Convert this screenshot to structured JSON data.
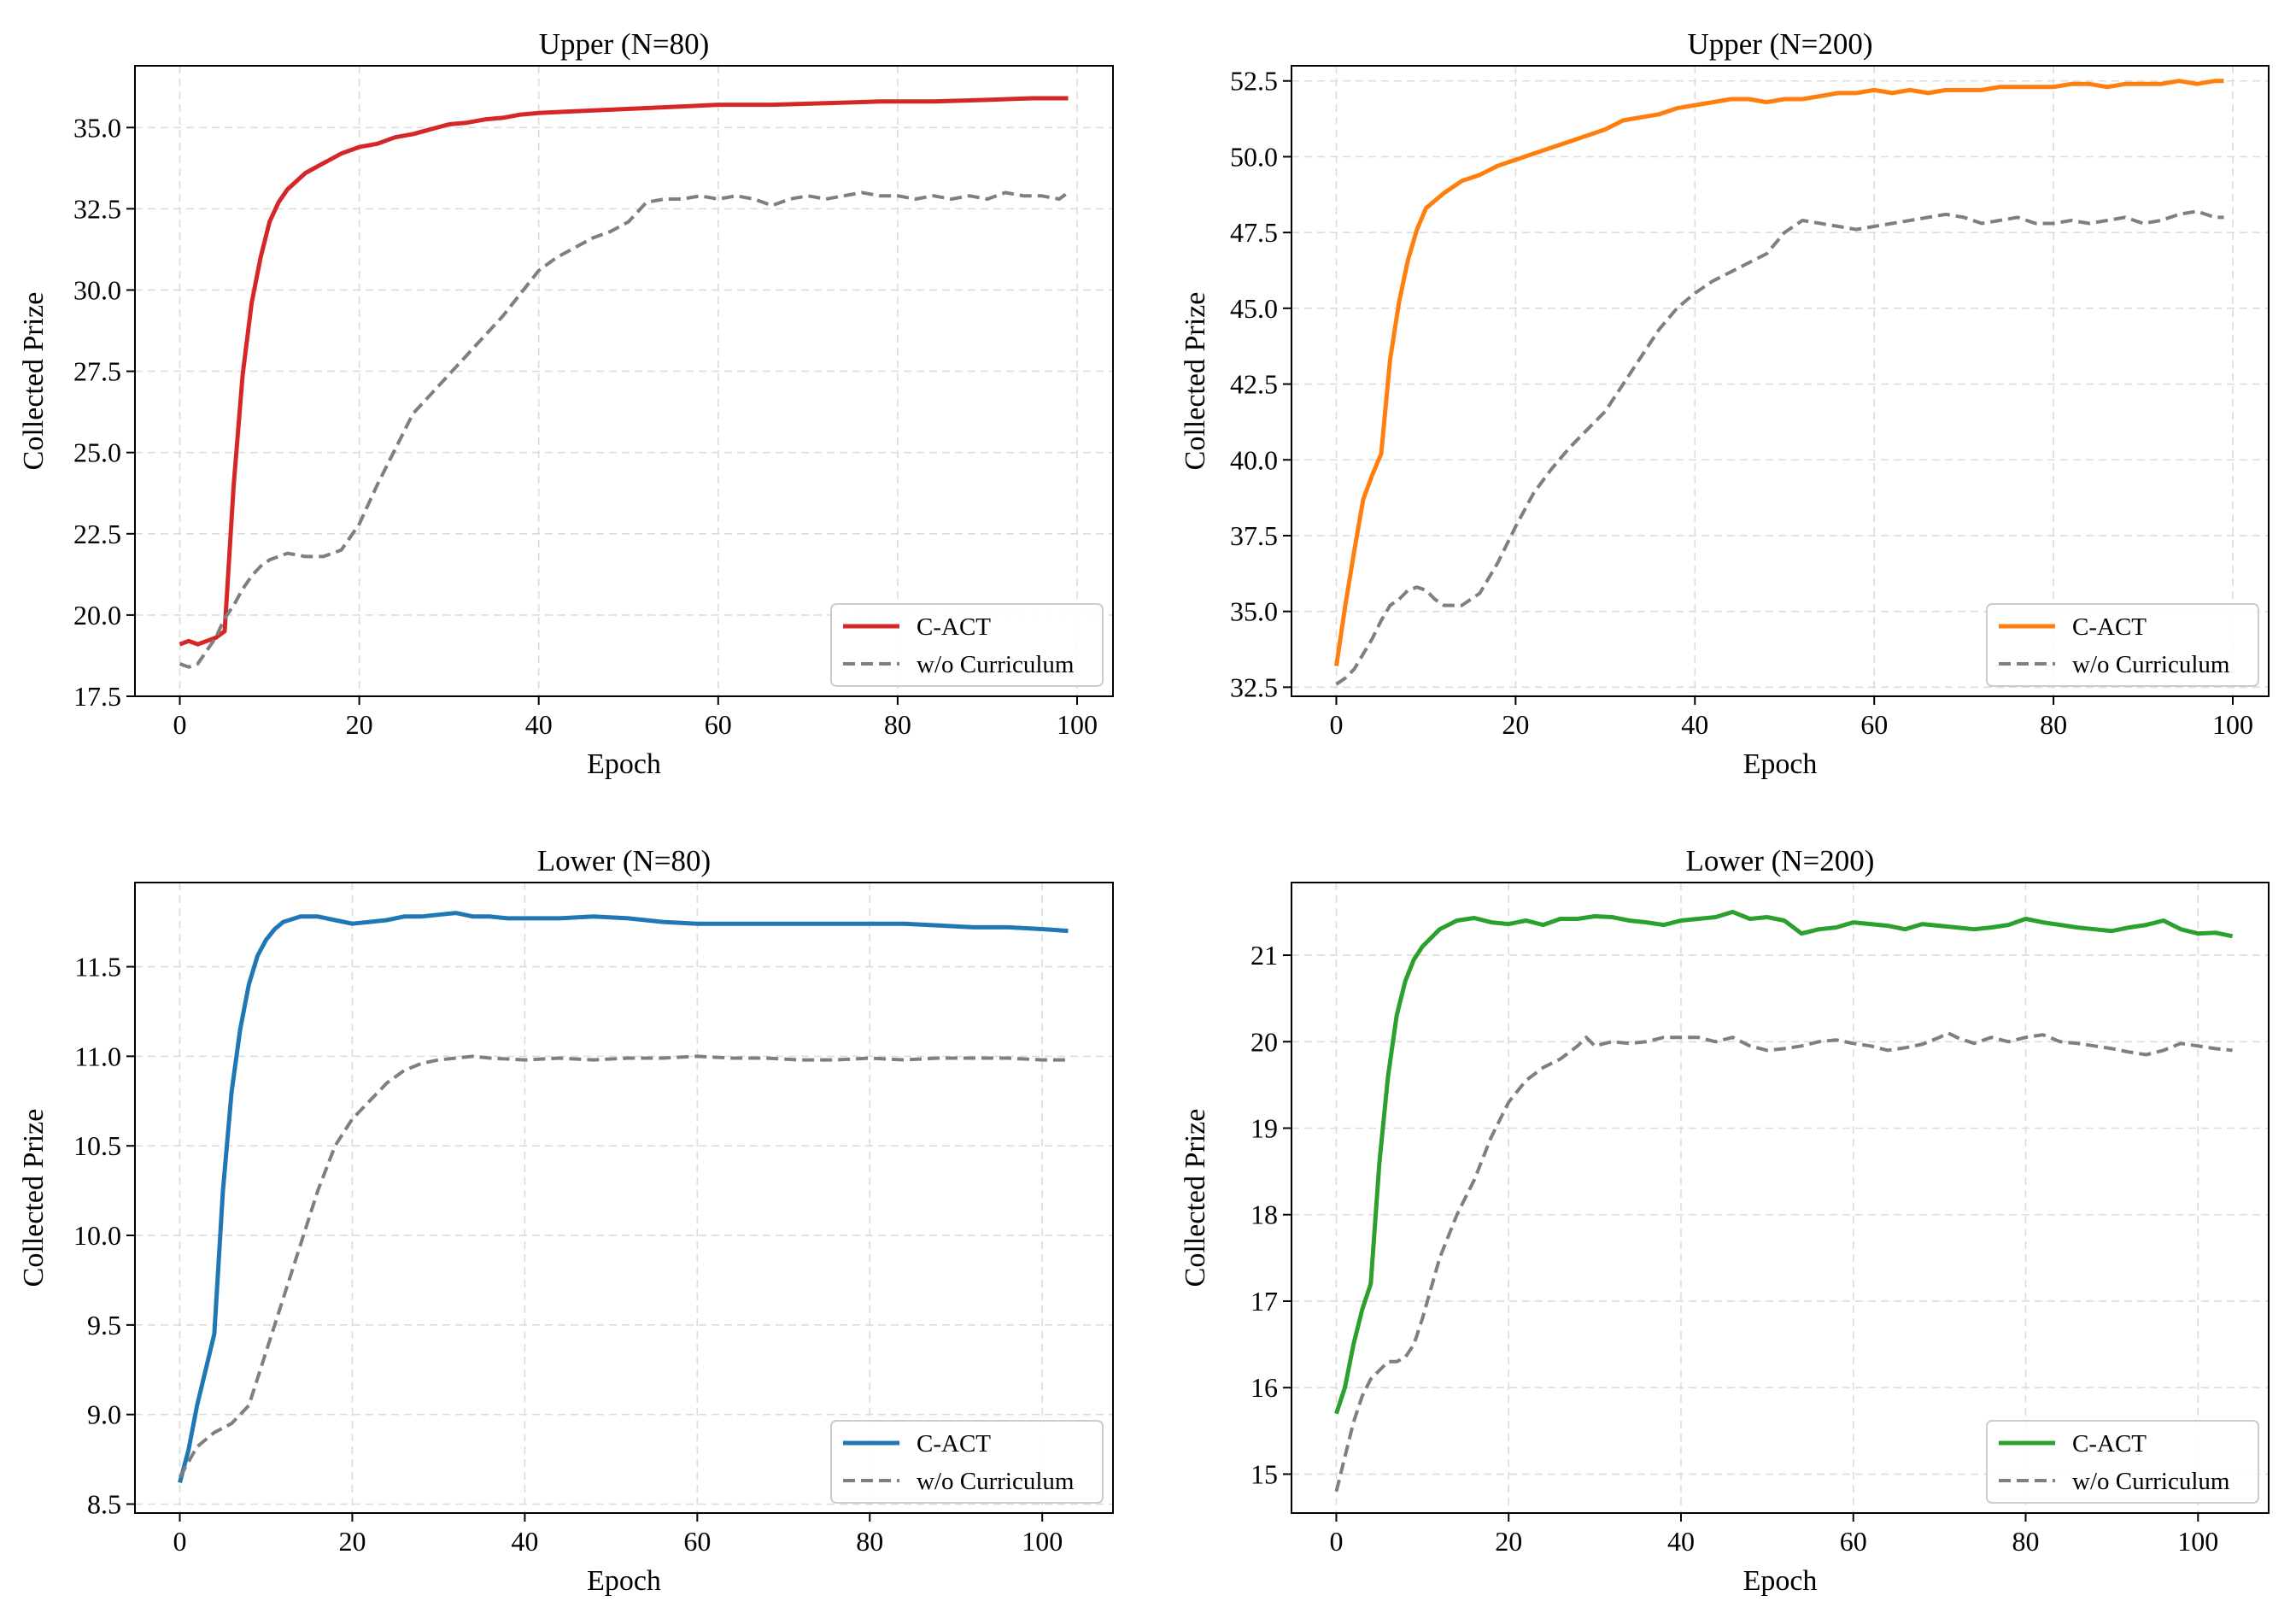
{
  "chart_data": [
    {
      "type": "line",
      "title": "Upper (N=80)",
      "xlabel": "Epoch",
      "ylabel": "Collected Prize",
      "xlim": [
        -5,
        104
      ],
      "ylim": [
        17.5,
        36.9
      ],
      "xticks": [
        0,
        20,
        40,
        60,
        80,
        100
      ],
      "yticks": [
        17.5,
        20.0,
        22.5,
        25.0,
        27.5,
        30.0,
        32.5,
        35.0
      ],
      "ytick_decimals": 1,
      "grid": true,
      "legend_position": "lower right",
      "series": [
        {
          "name": "C-ACT",
          "color": "#d62728",
          "dash": "solid",
          "x": [
            0,
            1,
            2,
            3,
            4,
            5,
            6,
            7,
            8,
            9,
            10,
            11,
            12,
            14,
            16,
            18,
            20,
            22,
            24,
            26,
            28,
            30,
            32,
            34,
            36,
            38,
            40,
            44,
            48,
            52,
            56,
            60,
            66,
            72,
            78,
            84,
            90,
            95,
            99
          ],
          "y": [
            19.1,
            19.2,
            19.1,
            19.2,
            19.3,
            19.5,
            24.0,
            27.4,
            29.6,
            31.0,
            32.1,
            32.7,
            33.1,
            33.6,
            33.9,
            34.2,
            34.4,
            34.5,
            34.7,
            34.8,
            34.95,
            35.1,
            35.15,
            35.25,
            35.3,
            35.4,
            35.45,
            35.5,
            35.55,
            35.6,
            35.65,
            35.7,
            35.7,
            35.75,
            35.8,
            35.8,
            35.85,
            35.9,
            35.9
          ]
        },
        {
          "name": "w/o Curriculum",
          "color": "#7f7f7f",
          "dash": "dashed",
          "x": [
            0,
            1,
            2,
            3,
            4,
            5,
            6,
            7,
            8,
            9,
            10,
            12,
            14,
            16,
            18,
            20,
            22,
            24,
            26,
            28,
            30,
            32,
            34,
            36,
            38,
            40,
            42,
            44,
            46,
            48,
            50,
            52,
            54,
            56,
            58,
            60,
            62,
            64,
            66,
            68,
            70,
            72,
            74,
            76,
            78,
            80,
            82,
            84,
            86,
            88,
            90,
            92,
            94,
            96,
            98,
            99
          ],
          "y": [
            18.5,
            18.4,
            18.5,
            18.9,
            19.3,
            19.9,
            20.3,
            20.8,
            21.2,
            21.5,
            21.7,
            21.9,
            21.8,
            21.8,
            22.0,
            22.8,
            24.0,
            25.1,
            26.2,
            26.8,
            27.4,
            28.0,
            28.6,
            29.2,
            29.9,
            30.6,
            31.0,
            31.3,
            31.6,
            31.8,
            32.1,
            32.7,
            32.8,
            32.8,
            32.9,
            32.8,
            32.9,
            32.8,
            32.6,
            32.8,
            32.9,
            32.8,
            32.9,
            33.0,
            32.9,
            32.9,
            32.8,
            32.9,
            32.8,
            32.9,
            32.8,
            33.0,
            32.9,
            32.9,
            32.8,
            33.0
          ]
        }
      ]
    },
    {
      "type": "line",
      "title": "Upper (N=200)",
      "xlabel": "Epoch",
      "ylabel": "Collected Prize",
      "xlim": [
        -5,
        104
      ],
      "ylim": [
        32.2,
        53.0
      ],
      "xticks": [
        0,
        20,
        40,
        60,
        80,
        100
      ],
      "yticks": [
        32.5,
        35.0,
        37.5,
        40.0,
        42.5,
        45.0,
        47.5,
        50.0,
        52.5
      ],
      "ytick_decimals": 1,
      "grid": true,
      "legend_position": "lower right",
      "series": [
        {
          "name": "C-ACT",
          "color": "#ff7f0e",
          "dash": "solid",
          "x": [
            0,
            1,
            2,
            3,
            4,
            5,
            6,
            7,
            8,
            9,
            10,
            12,
            14,
            16,
            18,
            20,
            22,
            24,
            26,
            28,
            30,
            32,
            34,
            36,
            38,
            40,
            42,
            44,
            46,
            48,
            50,
            52,
            54,
            56,
            58,
            60,
            62,
            64,
            66,
            68,
            70,
            72,
            74,
            76,
            78,
            80,
            82,
            84,
            86,
            88,
            90,
            92,
            94,
            96,
            98,
            99
          ],
          "y": [
            33.2,
            35.2,
            37.0,
            38.7,
            39.5,
            40.2,
            43.3,
            45.2,
            46.6,
            47.6,
            48.3,
            48.8,
            49.2,
            49.4,
            49.7,
            49.9,
            50.1,
            50.3,
            50.5,
            50.7,
            50.9,
            51.2,
            51.3,
            51.4,
            51.6,
            51.7,
            51.8,
            51.9,
            51.9,
            51.8,
            51.9,
            51.9,
            52.0,
            52.1,
            52.1,
            52.2,
            52.1,
            52.2,
            52.1,
            52.2,
            52.2,
            52.2,
            52.3,
            52.3,
            52.3,
            52.3,
            52.4,
            52.4,
            52.3,
            52.4,
            52.4,
            52.4,
            52.5,
            52.4,
            52.5,
            52.5
          ]
        },
        {
          "name": "w/o Curriculum",
          "color": "#7f7f7f",
          "dash": "dashed",
          "x": [
            0,
            1,
            2,
            3,
            4,
            5,
            6,
            7,
            8,
            9,
            10,
            11,
            12,
            14,
            16,
            18,
            20,
            22,
            24,
            26,
            28,
            30,
            32,
            34,
            36,
            38,
            40,
            42,
            44,
            46,
            48,
            50,
            52,
            54,
            56,
            58,
            60,
            62,
            64,
            66,
            68,
            70,
            72,
            74,
            76,
            78,
            80,
            82,
            84,
            86,
            88,
            90,
            92,
            94,
            96,
            98,
            99
          ],
          "y": [
            32.6,
            32.8,
            33.1,
            33.6,
            34.1,
            34.7,
            35.2,
            35.4,
            35.7,
            35.8,
            35.7,
            35.4,
            35.2,
            35.2,
            35.6,
            36.6,
            37.8,
            38.9,
            39.7,
            40.4,
            41.0,
            41.6,
            42.5,
            43.4,
            44.3,
            45.0,
            45.5,
            45.9,
            46.2,
            46.5,
            46.8,
            47.5,
            47.9,
            47.8,
            47.7,
            47.6,
            47.7,
            47.8,
            47.9,
            48.0,
            48.1,
            48.0,
            47.8,
            47.9,
            48.0,
            47.8,
            47.8,
            47.9,
            47.8,
            47.9,
            48.0,
            47.8,
            47.9,
            48.1,
            48.2,
            48.0,
            48.0
          ]
        }
      ]
    },
    {
      "type": "line",
      "title": "Lower (N=80)",
      "xlabel": "Epoch",
      "ylabel": "Collected Prize",
      "xlim": [
        -5.2,
        108.2
      ],
      "ylim": [
        8.45,
        11.97
      ],
      "xticks": [
        0,
        20,
        40,
        60,
        80,
        100
      ],
      "yticks": [
        8.5,
        9.0,
        9.5,
        10.0,
        10.5,
        11.0,
        11.5
      ],
      "ytick_decimals": 1,
      "grid": true,
      "legend_position": "lower right",
      "series": [
        {
          "name": "C-ACT",
          "color": "#1f77b4",
          "dash": "solid",
          "x": [
            0,
            1,
            2,
            3,
            4,
            5,
            6,
            7,
            8,
            9,
            10,
            11,
            12,
            14,
            16,
            18,
            20,
            22,
            24,
            26,
            28,
            30,
            32,
            34,
            36,
            38,
            40,
            44,
            48,
            52,
            56,
            60,
            64,
            68,
            72,
            76,
            80,
            84,
            88,
            92,
            96,
            100,
            103
          ],
          "y": [
            8.62,
            8.8,
            9.05,
            9.25,
            9.45,
            10.25,
            10.8,
            11.15,
            11.4,
            11.56,
            11.65,
            11.71,
            11.75,
            11.78,
            11.78,
            11.76,
            11.74,
            11.75,
            11.76,
            11.78,
            11.78,
            11.79,
            11.8,
            11.78,
            11.78,
            11.77,
            11.77,
            11.77,
            11.78,
            11.77,
            11.75,
            11.74,
            11.74,
            11.74,
            11.74,
            11.74,
            11.74,
            11.74,
            11.73,
            11.72,
            11.72,
            11.71,
            11.7
          ]
        },
        {
          "name": "w/o Curriculum",
          "color": "#7f7f7f",
          "dash": "dashed",
          "x": [
            0,
            2,
            4,
            6,
            8,
            10,
            12,
            14,
            16,
            18,
            20,
            22,
            24,
            26,
            28,
            30,
            32,
            34,
            36,
            40,
            44,
            48,
            52,
            56,
            60,
            64,
            68,
            72,
            76,
            80,
            84,
            88,
            92,
            96,
            100,
            103
          ],
          "y": [
            8.65,
            8.82,
            8.9,
            8.95,
            9.05,
            9.35,
            9.65,
            9.95,
            10.25,
            10.5,
            10.65,
            10.75,
            10.85,
            10.92,
            10.96,
            10.98,
            10.99,
            11.0,
            10.99,
            10.98,
            10.99,
            10.98,
            10.99,
            10.99,
            11.0,
            10.99,
            10.99,
            10.98,
            10.98,
            10.99,
            10.98,
            10.99,
            10.99,
            10.99,
            10.98,
            10.98
          ]
        }
      ]
    },
    {
      "type": "line",
      "title": "Lower (N=200)",
      "xlabel": "Epoch",
      "ylabel": "Collected Prize",
      "xlim": [
        -5.2,
        108.2
      ],
      "ylim": [
        14.55,
        21.84
      ],
      "xticks": [
        0,
        20,
        40,
        60,
        80,
        100
      ],
      "yticks": [
        15,
        16,
        17,
        18,
        19,
        20,
        21
      ],
      "ytick_decimals": 0,
      "grid": true,
      "legend_position": "lower right",
      "series": [
        {
          "name": "C-ACT",
          "color": "#2ca02c",
          "dash": "solid",
          "x": [
            0,
            1,
            2,
            3,
            4,
            5,
            6,
            7,
            8,
            9,
            10,
            12,
            14,
            16,
            18,
            20,
            22,
            24,
            26,
            28,
            30,
            32,
            34,
            36,
            38,
            40,
            42,
            44,
            46,
            48,
            50,
            52,
            54,
            56,
            58,
            60,
            62,
            64,
            66,
            68,
            70,
            72,
            74,
            76,
            78,
            80,
            82,
            84,
            86,
            88,
            90,
            92,
            94,
            96,
            98,
            100,
            102,
            104
          ],
          "y": [
            15.7,
            16.0,
            16.5,
            16.9,
            17.2,
            18.6,
            19.6,
            20.3,
            20.7,
            20.95,
            21.1,
            21.3,
            21.4,
            21.43,
            21.38,
            21.36,
            21.4,
            21.35,
            21.42,
            21.42,
            21.45,
            21.44,
            21.4,
            21.38,
            21.35,
            21.4,
            21.42,
            21.44,
            21.5,
            21.42,
            21.44,
            21.4,
            21.25,
            21.3,
            21.32,
            21.38,
            21.36,
            21.34,
            21.3,
            21.36,
            21.34,
            21.32,
            21.3,
            21.32,
            21.35,
            21.42,
            21.38,
            21.35,
            21.32,
            21.3,
            21.28,
            21.32,
            21.35,
            21.4,
            21.3,
            21.25,
            21.26,
            21.22
          ]
        },
        {
          "name": "w/o Curriculum",
          "color": "#7f7f7f",
          "dash": "dashed",
          "x": [
            0,
            1,
            2,
            3,
            4,
            5,
            6,
            7,
            8,
            9,
            10,
            12,
            14,
            16,
            18,
            20,
            22,
            24,
            26,
            28,
            29,
            30,
            32,
            34,
            36,
            38,
            40,
            42,
            44,
            46,
            48,
            50,
            52,
            54,
            56,
            58,
            60,
            62,
            64,
            66,
            68,
            70,
            71,
            72,
            74,
            76,
            78,
            80,
            82,
            84,
            86,
            88,
            90,
            92,
            94,
            96,
            98,
            100,
            102,
            104
          ],
          "y": [
            14.8,
            15.2,
            15.6,
            15.9,
            16.1,
            16.2,
            16.3,
            16.3,
            16.35,
            16.5,
            16.8,
            17.5,
            18.0,
            18.4,
            18.9,
            19.3,
            19.55,
            19.7,
            19.8,
            19.95,
            20.05,
            19.95,
            20.0,
            19.98,
            20.0,
            20.05,
            20.05,
            20.05,
            20.0,
            20.05,
            19.95,
            19.9,
            19.92,
            19.95,
            20.0,
            20.02,
            19.98,
            19.95,
            19.9,
            19.93,
            19.97,
            20.05,
            20.1,
            20.05,
            19.98,
            20.05,
            20.0,
            20.05,
            20.08,
            20.0,
            19.98,
            19.95,
            19.92,
            19.88,
            19.85,
            19.9,
            19.98,
            19.95,
            19.92,
            19.9
          ]
        }
      ]
    }
  ]
}
